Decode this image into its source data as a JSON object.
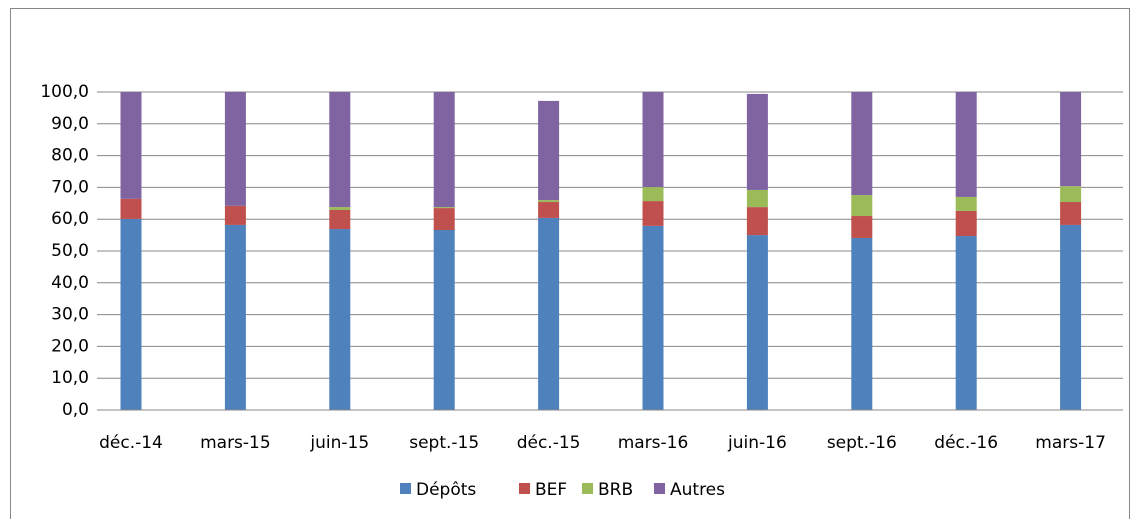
{
  "chart_data": {
    "type": "stacked-bar",
    "categories": [
      "déc.-14",
      "mars-15",
      "juin-15",
      "sept.-15",
      "déc.-15",
      "mars-16",
      "juin-16",
      "sept.-16",
      "déc.-16",
      "mars-17"
    ],
    "series": [
      {
        "name": "Dépôts",
        "color": "#4f81bd",
        "values": [
          60.1,
          58.2,
          56.9,
          56.6,
          60.4,
          57.9,
          55.0,
          54.1,
          54.7,
          58.2
        ]
      },
      {
        "name": "BEF",
        "color": "#c0504d",
        "values": [
          6.3,
          6.0,
          6.0,
          6.9,
          5.0,
          7.8,
          8.8,
          6.9,
          7.9,
          7.2
        ]
      },
      {
        "name": "BRB",
        "color": "#9bbb59",
        "values": [
          0,
          0,
          0.9,
          0.3,
          0.6,
          4.4,
          5.4,
          6.6,
          4.4,
          5.0
        ]
      },
      {
        "name": "Autres",
        "color": "#8064a2",
        "values": [
          33.6,
          35.8,
          36.2,
          36.2,
          31.2,
          29.9,
          30.2,
          32.4,
          33.0,
          29.6
        ]
      }
    ],
    "ylim": [
      0,
      100
    ],
    "yticks": [
      {
        "value": 0,
        "label": "0,0"
      },
      {
        "value": 10,
        "label": "10,0"
      },
      {
        "value": 20,
        "label": "20,0"
      },
      {
        "value": 30,
        "label": "30,0"
      },
      {
        "value": 40,
        "label": "40,0"
      },
      {
        "value": 50,
        "label": "50,0"
      },
      {
        "value": 60,
        "label": "60,0"
      },
      {
        "value": 70,
        "label": "70,0"
      },
      {
        "value": 80,
        "label": "80,0"
      },
      {
        "value": 90,
        "label": "90,0"
      },
      {
        "value": 100,
        "label": "100,0"
      }
    ],
    "grid": true,
    "legend": "bottom"
  }
}
